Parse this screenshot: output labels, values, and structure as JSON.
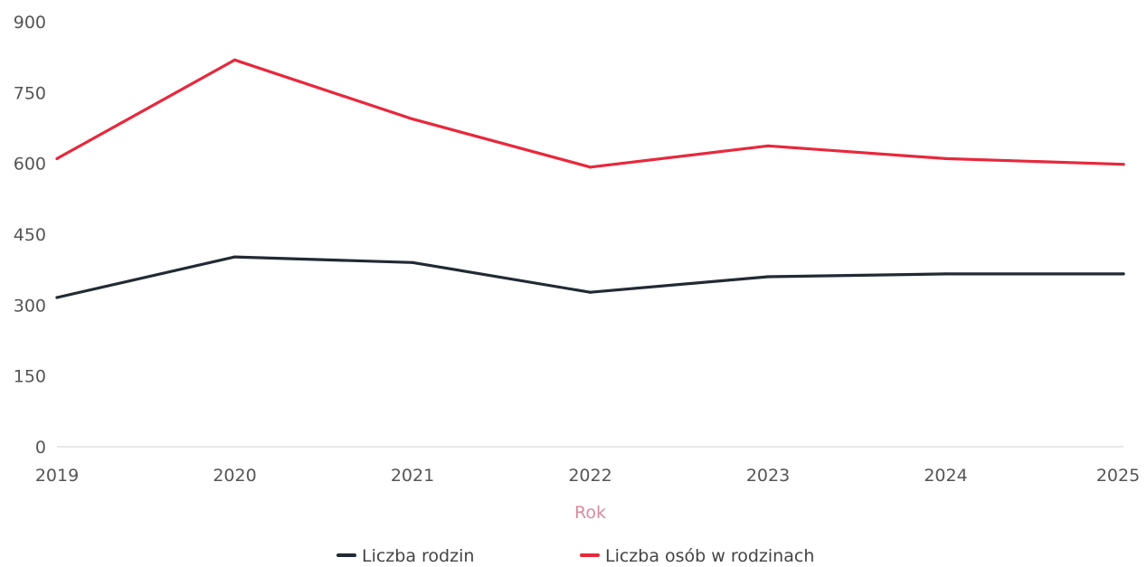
{
  "chart_data": {
    "type": "line",
    "title": "",
    "xlabel": "Rok",
    "ylabel": "",
    "x": [
      "2019",
      "2020",
      "2021",
      "2022",
      "2023",
      "2024",
      "2025"
    ],
    "ylim": [
      0,
      900
    ],
    "yticks": [
      "0",
      "150",
      "300",
      "450",
      "600",
      "750",
      "900"
    ],
    "grid": false,
    "legend_position": "bottom-center",
    "series": [
      {
        "name": "Liczba rodzin",
        "color": "#222a33",
        "values": [
          316,
          402,
          390,
          327,
          360,
          366,
          366
        ]
      },
      {
        "name": "Liczba osób w rodzinach",
        "color": "#e8283c",
        "values": [
          610,
          819,
          694,
          592,
          637,
          610,
          598
        ]
      }
    ]
  }
}
